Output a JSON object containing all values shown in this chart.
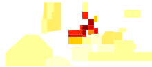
{
  "figsize": [
    2.2,
    0.98
  ],
  "dpi": 100,
  "background_color": "#ffffff",
  "no_data_color": "#ffffcc",
  "colormap_colors": [
    "#ffff99",
    "#ffee66",
    "#ffdd33",
    "#ffcc00",
    "#ffaa00",
    "#ff8800",
    "#ff5500",
    "#ff2200",
    "#ee0000",
    "#cc0000",
    "#aa0000",
    "#880000"
  ],
  "color_thresholds": [
    0,
    100,
    200,
    300,
    400,
    500,
    600,
    700,
    800,
    900,
    1000,
    1500
  ],
  "country_daly": {
    "AFG": 50,
    "ALB": 5,
    "DZA": 20,
    "AGO": 900,
    "ARG": 50,
    "ARM": 5,
    "AUS": 5,
    "AUT": 5,
    "AZE": 5,
    "BHS": 15,
    "BHR": 5,
    "BGD": 120,
    "BLR": 5,
    "BEL": 5,
    "BLZ": 30,
    "BEN": 650,
    "BTN": 80,
    "BOL": 80,
    "BIH": 5,
    "BWA": 150,
    "BRA": 110,
    "BRN": 10,
    "BGR": 5,
    "BFA": 750,
    "BDI": 950,
    "KHM": 130,
    "CMR": 620,
    "CAN": 5,
    "CAF": 1300,
    "TCD": 850,
    "CHL": 15,
    "CHN": 25,
    "COL": 70,
    "COM": 250,
    "COD": 1600,
    "COG": 720,
    "CRI": 15,
    "CIV": 720,
    "HRV": 5,
    "CUB": 10,
    "CYP": 5,
    "CZE": 5,
    "DNK": 5,
    "DJI": 180,
    "DOM": 40,
    "ECU": 70,
    "EGY": 80,
    "SLV": 40,
    "GNQ": 550,
    "ERI": 380,
    "EST": 5,
    "ETH": 580,
    "FIN": 5,
    "FRA": 5,
    "GAB": 380,
    "GMB": 480,
    "GEO": 5,
    "DEU": 5,
    "GHA": 520,
    "GRC": 5,
    "GTM": 70,
    "GIN": 750,
    "GNB": 820,
    "GUY": 90,
    "HTI": 90,
    "HND": 70,
    "HUN": 5,
    "IND": 130,
    "IDN": 90,
    "IRN": 25,
    "IRQ": 15,
    "IRL": 5,
    "ISR": 5,
    "ITA": 5,
    "JAM": 10,
    "JPN": 5,
    "JOR": 5,
    "KAZ": 5,
    "KEN": 520,
    "PRK": 15,
    "KOR": 5,
    "KWT": 5,
    "KGZ": 5,
    "LAO": 180,
    "LVA": 5,
    "LBN": 5,
    "LSO": 80,
    "LBR": 950,
    "LBY": 5,
    "LTU": 5,
    "LUX": 5,
    "MDG": 380,
    "MWI": 820,
    "MYS": 40,
    "MLI": 920,
    "MRT": 380,
    "MEX": 30,
    "MDA": 5,
    "MNG": 5,
    "MAR": 20,
    "MOZ": 1250,
    "MMR": 180,
    "NAM": 180,
    "NPL": 90,
    "NLD": 5,
    "NZL": 5,
    "NIC": 70,
    "NER": 820,
    "NGA": 1050,
    "NOR": 5,
    "OMN": 5,
    "PAK": 70,
    "PAN": 40,
    "PNG": 280,
    "PRY": 40,
    "PER": 80,
    "PHL": 90,
    "POL": 5,
    "PRT": 5,
    "QAT": 5,
    "ROU": 5,
    "RUS": 5,
    "RWA": 620,
    "SAU": 5,
    "SEN": 520,
    "SLE": 1050,
    "SOM": 820,
    "ZAF": 80,
    "ESP": 5,
    "LKA": 70,
    "SDN": 480,
    "SSD": 950,
    "SUR": 70,
    "SWZ": 80,
    "SWE": 5,
    "CHE": 5,
    "SYR": 15,
    "TJK": 15,
    "TZA": 820,
    "THA": 70,
    "TGO": 620,
    "TTO": 10,
    "TUN": 15,
    "TUR": 5,
    "TKM": 5,
    "UGA": 720,
    "UKR": 5,
    "ARE": 5,
    "GBR": 5,
    "USA": 5,
    "URY": 10,
    "UZB": 10,
    "VEN": 70,
    "VNM": 90,
    "YEM": 80,
    "ZMB": 720,
    "ZWE": 480
  }
}
